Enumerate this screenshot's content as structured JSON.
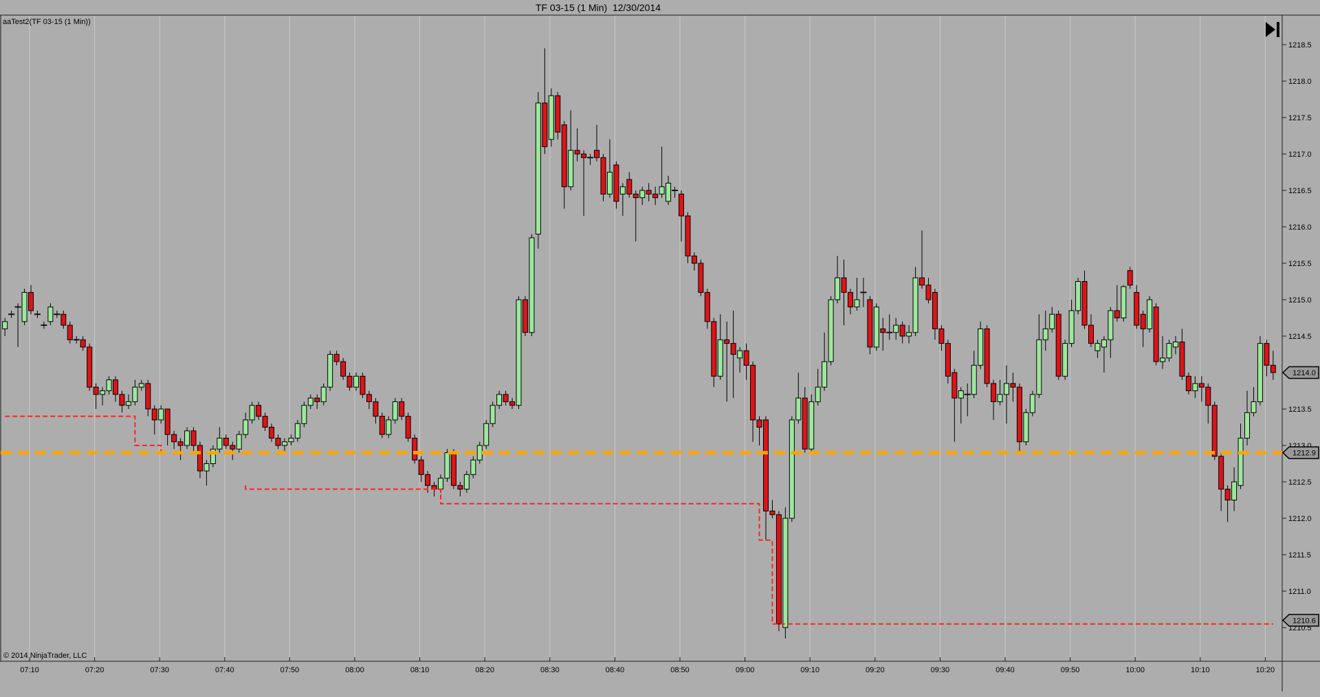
{
  "window": {
    "title": "TF 03-15 (1 Min)  12/30/2014"
  },
  "chart": {
    "instrument_label": "aaTest2(TF 03-15 (1 Min))",
    "copyright": "© 2014 NinjaTrader, LLC",
    "go_to_end_icon": "skip-to-end-icon",
    "colors": {
      "background": "#ADADAD",
      "gridline": "#C9C9C9",
      "axis_line": "#1A1A1A",
      "text": "#000000",
      "candle_up_fill": "#9CE89C",
      "candle_down_fill": "#DC1418",
      "candle_outline": "#000000",
      "doji_dash": "#111111",
      "entry_line_orange": "#FFA500",
      "stop_line_red": "#FF2222",
      "badge_fill": "#999999",
      "badge_border": "#000000"
    }
  },
  "chart_data": {
    "type": "candlestick",
    "title": "TF 03-15 (1 Min)  12/30/2014",
    "instrument": "TF 03-15",
    "interval": "1 Min",
    "date": "12/30/2014",
    "start_time": "07:06",
    "interval_minutes": 1,
    "x_ticks": [
      "07:10",
      "07:20",
      "07:30",
      "07:40",
      "07:50",
      "08:00",
      "08:10",
      "08:20",
      "08:30",
      "08:40",
      "08:50",
      "09:00",
      "09:10",
      "09:20",
      "09:30",
      "09:40",
      "09:50",
      "10:00",
      "10:10",
      "10:20"
    ],
    "y_ticks": [
      "1218.5",
      "1218.0",
      "1217.5",
      "1217.0",
      "1216.5",
      "1216.0",
      "1215.5",
      "1215.0",
      "1214.5",
      "1214.0",
      "1213.5",
      "1213.0",
      "1212.5",
      "1212.0",
      "1211.5",
      "1211.0",
      "1210.5"
    ],
    "y_axis": {
      "min": 1210.0,
      "max": 1218.9,
      "tick_step": 0.5
    },
    "grid": "vertical-only",
    "price_markers": [
      {
        "label": "1214.0",
        "price": 1214.0,
        "kind": "last-price"
      },
      {
        "label": "1212.9",
        "price": 1212.9,
        "kind": "orange-line-level"
      },
      {
        "label": "1210.6",
        "price": 1210.6,
        "kind": "stop-line-level"
      }
    ],
    "overlays": {
      "orange_entry_line": {
        "price": 1212.9,
        "style": "thick-dashed",
        "color": "#FFA500"
      },
      "red_stop_line": {
        "style": "dashed",
        "color": "#FF2222",
        "runs": [
          [
            [
              0,
              1213.4
            ],
            [
              20,
              1213.4
            ],
            [
              20,
              1213.0
            ],
            [
              24,
              1213.0
            ],
            [
              24,
              1212.9
            ]
          ],
          [
            [
              37,
              1212.45
            ],
            [
              37,
              1212.4
            ],
            [
              67,
              1212.4
            ],
            [
              67,
              1212.2
            ],
            [
              116,
              1212.2
            ],
            [
              116,
              1211.7
            ],
            [
              118,
              1211.7
            ],
            [
              118,
              1210.55
            ],
            [
              195,
              1210.55
            ]
          ]
        ]
      }
    },
    "bars_format": [
      "open",
      "high",
      "low",
      "close"
    ],
    "bars": [
      [
        1214.6,
        1214.75,
        1214.5,
        1214.7
      ],
      [
        1214.8,
        1214.85,
        1214.75,
        1214.8
      ],
      [
        1214.9,
        1214.95,
        1214.35,
        1214.9
      ],
      [
        1214.7,
        1215.15,
        1214.65,
        1215.1
      ],
      [
        1215.1,
        1215.2,
        1214.8,
        1214.85
      ],
      [
        1214.8,
        1214.85,
        1214.75,
        1214.8
      ],
      [
        1214.65,
        1214.7,
        1214.6,
        1214.65
      ],
      [
        1214.7,
        1214.95,
        1214.65,
        1214.9
      ],
      [
        1214.8,
        1214.85,
        1214.75,
        1214.8
      ],
      [
        1214.8,
        1214.85,
        1214.6,
        1214.65
      ],
      [
        1214.65,
        1214.7,
        1214.4,
        1214.45
      ],
      [
        1214.45,
        1214.5,
        1214.4,
        1214.45
      ],
      [
        1214.45,
        1214.5,
        1214.3,
        1214.35
      ],
      [
        1214.35,
        1214.4,
        1213.75,
        1213.8
      ],
      [
        1213.8,
        1213.85,
        1213.5,
        1213.7
      ],
      [
        1213.7,
        1213.8,
        1213.55,
        1213.75
      ],
      [
        1213.75,
        1213.95,
        1213.7,
        1213.9
      ],
      [
        1213.9,
        1213.95,
        1213.6,
        1213.7
      ],
      [
        1213.7,
        1213.75,
        1213.45,
        1213.55
      ],
      [
        1213.55,
        1213.7,
        1213.5,
        1213.6
      ],
      [
        1213.6,
        1213.9,
        1213.55,
        1213.8
      ],
      [
        1213.8,
        1213.9,
        1213.75,
        1213.85
      ],
      [
        1213.85,
        1213.9,
        1213.4,
        1213.5
      ],
      [
        1213.5,
        1213.55,
        1213.15,
        1213.35
      ],
      [
        1213.35,
        1213.55,
        1213.3,
        1213.5
      ],
      [
        1213.5,
        1213.5,
        1213.0,
        1213.15
      ],
      [
        1213.15,
        1213.2,
        1212.95,
        1213.05
      ],
      [
        1213.05,
        1213.1,
        1212.8,
        1213.0
      ],
      [
        1213.0,
        1213.25,
        1212.95,
        1213.2
      ],
      [
        1213.2,
        1213.25,
        1212.9,
        1213.0
      ],
      [
        1213.0,
        1213.05,
        1212.55,
        1212.65
      ],
      [
        1212.65,
        1212.8,
        1212.45,
        1212.75
      ],
      [
        1212.75,
        1213.0,
        1212.7,
        1212.95
      ],
      [
        1212.95,
        1213.25,
        1212.9,
        1213.1
      ],
      [
        1213.1,
        1213.15,
        1212.95,
        1213.0
      ],
      [
        1213.0,
        1213.05,
        1212.8,
        1212.95
      ],
      [
        1212.95,
        1213.2,
        1212.9,
        1213.15
      ],
      [
        1213.15,
        1213.45,
        1213.1,
        1213.35
      ],
      [
        1213.35,
        1213.6,
        1213.3,
        1213.55
      ],
      [
        1213.55,
        1213.6,
        1213.35,
        1213.4
      ],
      [
        1213.4,
        1213.45,
        1213.2,
        1213.25
      ],
      [
        1213.25,
        1213.3,
        1213.05,
        1213.1
      ],
      [
        1213.1,
        1213.15,
        1212.95,
        1213.0
      ],
      [
        1213.0,
        1213.1,
        1212.9,
        1213.05
      ],
      [
        1213.05,
        1213.15,
        1213.0,
        1213.1
      ],
      [
        1213.1,
        1213.35,
        1213.05,
        1213.3
      ],
      [
        1213.3,
        1213.6,
        1213.25,
        1213.55
      ],
      [
        1213.55,
        1213.7,
        1213.5,
        1213.65
      ],
      [
        1213.65,
        1213.7,
        1213.5,
        1213.6
      ],
      [
        1213.6,
        1213.85,
        1213.55,
        1213.8
      ],
      [
        1213.8,
        1214.3,
        1213.75,
        1214.25
      ],
      [
        1214.25,
        1214.3,
        1214.1,
        1214.15
      ],
      [
        1214.15,
        1214.2,
        1213.9,
        1213.95
      ],
      [
        1213.95,
        1214.0,
        1213.75,
        1213.8
      ],
      [
        1213.8,
        1214.0,
        1213.75,
        1213.95
      ],
      [
        1213.95,
        1214.0,
        1213.65,
        1213.7
      ],
      [
        1213.7,
        1213.75,
        1213.5,
        1213.6
      ],
      [
        1213.6,
        1213.65,
        1213.3,
        1213.4
      ],
      [
        1213.4,
        1213.45,
        1213.1,
        1213.15
      ],
      [
        1213.15,
        1213.4,
        1213.1,
        1213.35
      ],
      [
        1213.35,
        1213.65,
        1213.3,
        1213.6
      ],
      [
        1213.6,
        1213.65,
        1213.35,
        1213.4
      ],
      [
        1213.4,
        1213.45,
        1213.05,
        1213.1
      ],
      [
        1213.1,
        1213.15,
        1212.75,
        1212.8
      ],
      [
        1212.8,
        1212.85,
        1212.5,
        1212.6
      ],
      [
        1212.6,
        1212.65,
        1212.35,
        1212.45
      ],
      [
        1212.45,
        1212.5,
        1212.3,
        1212.4
      ],
      [
        1212.4,
        1212.6,
        1212.35,
        1212.55
      ],
      [
        1212.55,
        1212.95,
        1212.5,
        1212.9
      ],
      [
        1212.9,
        1212.95,
        1212.4,
        1212.45
      ],
      [
        1212.45,
        1212.5,
        1212.3,
        1212.4
      ],
      [
        1212.4,
        1212.65,
        1212.35,
        1212.6
      ],
      [
        1212.6,
        1212.85,
        1212.55,
        1212.8
      ],
      [
        1212.8,
        1213.05,
        1212.75,
        1213.0
      ],
      [
        1213.0,
        1213.35,
        1212.95,
        1213.3
      ],
      [
        1213.3,
        1213.6,
        1213.25,
        1213.55
      ],
      [
        1213.55,
        1213.75,
        1213.5,
        1213.7
      ],
      [
        1213.7,
        1213.75,
        1213.55,
        1213.6
      ],
      [
        1213.6,
        1213.65,
        1213.5,
        1213.55
      ],
      [
        1213.55,
        1215.05,
        1213.5,
        1215.0
      ],
      [
        1215.0,
        1215.05,
        1214.5,
        1214.55
      ],
      [
        1214.55,
        1215.9,
        1214.5,
        1215.85
      ],
      [
        1215.9,
        1217.85,
        1215.7,
        1217.7
      ],
      [
        1217.7,
        1218.45,
        1217.0,
        1217.1
      ],
      [
        1217.2,
        1217.9,
        1217.1,
        1217.8
      ],
      [
        1217.8,
        1217.85,
        1217.2,
        1217.3
      ],
      [
        1217.4,
        1217.45,
        1216.25,
        1216.55
      ],
      [
        1216.55,
        1217.6,
        1216.5,
        1217.05
      ],
      [
        1217.05,
        1217.35,
        1216.9,
        1217.0
      ],
      [
        1217.0,
        1217.05,
        1216.15,
        1216.95
      ],
      [
        1216.95,
        1217.0,
        1216.85,
        1216.95
      ],
      [
        1217.05,
        1217.4,
        1216.9,
        1216.95
      ],
      [
        1216.95,
        1217.0,
        1216.35,
        1216.45
      ],
      [
        1216.45,
        1217.2,
        1216.4,
        1216.75
      ],
      [
        1216.85,
        1216.9,
        1216.25,
        1216.35
      ],
      [
        1216.45,
        1216.6,
        1216.15,
        1216.55
      ],
      [
        1216.65,
        1216.75,
        1216.4,
        1216.45
      ],
      [
        1216.45,
        1216.5,
        1215.8,
        1216.4
      ],
      [
        1216.4,
        1216.55,
        1216.3,
        1216.5
      ],
      [
        1216.5,
        1216.6,
        1216.35,
        1216.45
      ],
      [
        1216.45,
        1216.55,
        1216.3,
        1216.4
      ],
      [
        1216.45,
        1217.1,
        1216.4,
        1216.55
      ],
      [
        1216.35,
        1216.7,
        1216.3,
        1216.6
      ],
      [
        1216.5,
        1216.55,
        1216.4,
        1216.5
      ],
      [
        1216.45,
        1216.5,
        1215.8,
        1216.15
      ],
      [
        1216.15,
        1216.2,
        1215.5,
        1215.6
      ],
      [
        1215.6,
        1215.65,
        1215.4,
        1215.5
      ],
      [
        1215.5,
        1215.55,
        1215.05,
        1215.1
      ],
      [
        1215.1,
        1215.15,
        1214.6,
        1214.7
      ],
      [
        1214.7,
        1214.75,
        1213.8,
        1213.95
      ],
      [
        1213.95,
        1214.8,
        1213.9,
        1214.45
      ],
      [
        1214.45,
        1214.7,
        1213.6,
        1214.4
      ],
      [
        1214.4,
        1214.85,
        1213.65,
        1214.25
      ],
      [
        1214.2,
        1214.35,
        1214.0,
        1214.3
      ],
      [
        1214.3,
        1214.4,
        1213.9,
        1214.1
      ],
      [
        1214.1,
        1214.15,
        1213.05,
        1213.35
      ],
      [
        1213.35,
        1213.4,
        1213.0,
        1213.25
      ],
      [
        1213.35,
        1213.4,
        1211.7,
        1212.1
      ],
      [
        1212.1,
        1212.25,
        1212.0,
        1212.05
      ],
      [
        1212.05,
        1212.1,
        1210.45,
        1210.55
      ],
      [
        1210.5,
        1212.15,
        1210.35,
        1212.0
      ],
      [
        1212.0,
        1213.4,
        1211.95,
        1213.35
      ],
      [
        1213.35,
        1214.0,
        1213.3,
        1213.65
      ],
      [
        1213.65,
        1213.8,
        1212.9,
        1212.95
      ],
      [
        1212.95,
        1213.7,
        1212.9,
        1213.6
      ],
      [
        1213.6,
        1214.05,
        1213.55,
        1213.8
      ],
      [
        1213.8,
        1214.55,
        1213.75,
        1214.15
      ],
      [
        1214.15,
        1215.05,
        1214.1,
        1215.0
      ],
      [
        1215.0,
        1215.6,
        1214.95,
        1215.3
      ],
      [
        1215.3,
        1215.55,
        1214.65,
        1215.1
      ],
      [
        1215.1,
        1215.15,
        1214.8,
        1214.9
      ],
      [
        1214.9,
        1215.3,
        1214.85,
        1215.0
      ],
      [
        1215.1,
        1215.3,
        1214.9,
        1215.1
      ],
      [
        1215.0,
        1215.05,
        1214.25,
        1214.35
      ],
      [
        1214.35,
        1214.95,
        1214.3,
        1214.9
      ],
      [
        1214.6,
        1214.75,
        1214.3,
        1214.55
      ],
      [
        1214.55,
        1214.8,
        1214.45,
        1214.55
      ],
      [
        1214.55,
        1214.75,
        1214.45,
        1214.65
      ],
      [
        1214.65,
        1214.7,
        1214.4,
        1214.5
      ],
      [
        1214.5,
        1214.65,
        1214.4,
        1214.55
      ],
      [
        1214.55,
        1215.45,
        1214.5,
        1215.3
      ],
      [
        1215.3,
        1215.95,
        1215.15,
        1215.2
      ],
      [
        1215.2,
        1215.3,
        1214.95,
        1215.0
      ],
      [
        1215.1,
        1215.15,
        1214.45,
        1214.6
      ],
      [
        1214.6,
        1214.65,
        1214.3,
        1214.4
      ],
      [
        1214.4,
        1214.45,
        1213.85,
        1213.95
      ],
      [
        1214.0,
        1214.05,
        1213.05,
        1213.65
      ],
      [
        1213.65,
        1213.8,
        1213.3,
        1213.75
      ],
      [
        1213.7,
        1213.85,
        1213.4,
        1213.7
      ],
      [
        1213.7,
        1214.3,
        1213.65,
        1214.1
      ],
      [
        1214.1,
        1214.7,
        1214.05,
        1214.6
      ],
      [
        1214.6,
        1214.65,
        1213.8,
        1213.85
      ],
      [
        1213.85,
        1213.9,
        1213.35,
        1213.6
      ],
      [
        1213.6,
        1213.9,
        1213.55,
        1213.7
      ],
      [
        1213.7,
        1214.1,
        1213.3,
        1213.85
      ],
      [
        1213.85,
        1214.0,
        1213.6,
        1213.8
      ],
      [
        1213.8,
        1213.85,
        1212.9,
        1213.05
      ],
      [
        1213.05,
        1213.5,
        1213.0,
        1213.45
      ],
      [
        1213.45,
        1213.75,
        1213.4,
        1213.7
      ],
      [
        1213.7,
        1214.8,
        1213.65,
        1214.45
      ],
      [
        1214.45,
        1214.85,
        1214.3,
        1214.6
      ],
      [
        1214.6,
        1214.9,
        1214.55,
        1214.8
      ],
      [
        1214.8,
        1214.85,
        1213.9,
        1213.95
      ],
      [
        1213.95,
        1214.45,
        1213.9,
        1214.4
      ],
      [
        1214.4,
        1215.0,
        1214.35,
        1214.85
      ],
      [
        1214.85,
        1215.3,
        1214.8,
        1215.25
      ],
      [
        1215.25,
        1215.4,
        1214.6,
        1214.65
      ],
      [
        1214.65,
        1214.8,
        1214.35,
        1214.4
      ],
      [
        1214.3,
        1214.45,
        1214.2,
        1214.4
      ],
      [
        1214.35,
        1214.5,
        1214.0,
        1214.45
      ],
      [
        1214.45,
        1214.9,
        1214.2,
        1214.85
      ],
      [
        1214.85,
        1215.2,
        1214.7,
        1214.75
      ],
      [
        1214.75,
        1215.2,
        1214.7,
        1215.18
      ],
      [
        1215.4,
        1215.45,
        1215.15,
        1215.2
      ],
      [
        1215.1,
        1215.2,
        1214.6,
        1214.65
      ],
      [
        1214.8,
        1214.85,
        1214.35,
        1214.6
      ],
      [
        1214.6,
        1215.05,
        1214.55,
        1215.0
      ],
      [
        1214.9,
        1214.95,
        1214.1,
        1214.15
      ],
      [
        1214.15,
        1214.5,
        1214.05,
        1214.2
      ],
      [
        1214.2,
        1214.45,
        1214.15,
        1214.4
      ],
      [
        1214.35,
        1214.5,
        1214.25,
        1214.42
      ],
      [
        1214.42,
        1214.6,
        1213.9,
        1213.95
      ],
      [
        1213.95,
        1214.0,
        1213.7,
        1213.75
      ],
      [
        1213.75,
        1213.95,
        1213.65,
        1213.85
      ],
      [
        1213.85,
        1213.95,
        1213.6,
        1213.8
      ],
      [
        1213.8,
        1213.85,
        1213.3,
        1213.55
      ],
      [
        1213.55,
        1213.6,
        1212.8,
        1212.85
      ],
      [
        1212.85,
        1212.9,
        1212.1,
        1212.4
      ],
      [
        1212.4,
        1212.45,
        1211.95,
        1212.25
      ],
      [
        1212.25,
        1212.7,
        1212.1,
        1212.5
      ],
      [
        1212.45,
        1213.3,
        1212.4,
        1213.1
      ],
      [
        1213.1,
        1213.75,
        1213.0,
        1213.45
      ],
      [
        1213.45,
        1213.8,
        1213.4,
        1213.6
      ],
      [
        1213.6,
        1214.5,
        1213.55,
        1214.4
      ],
      [
        1214.4,
        1214.45,
        1213.95,
        1214.1
      ],
      [
        1214.1,
        1214.3,
        1213.9,
        1214.0
      ]
    ]
  }
}
